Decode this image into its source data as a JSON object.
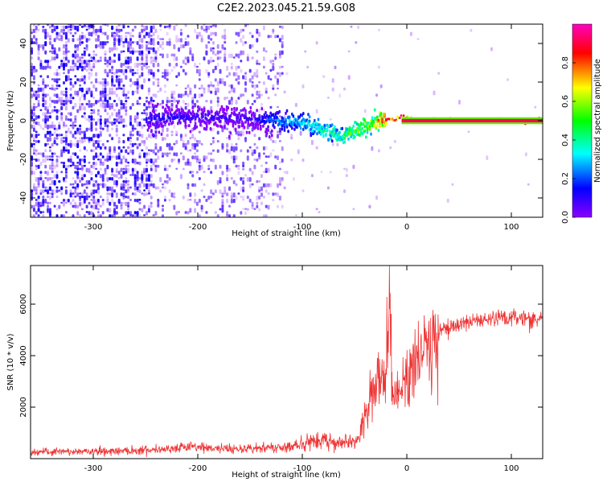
{
  "figure_title": "C2E2.2023.045.21.59.G08",
  "chart_data": [
    {
      "type": "heatmap",
      "title": "",
      "xlabel": "Height of straight line (km)",
      "ylabel": "Frequency (Hz)",
      "xlim": [
        -360,
        130
      ],
      "ylim": [
        -50,
        50
      ],
      "x_ticks": [
        -300,
        -200,
        -100,
        0,
        100
      ],
      "y_ticks": [
        -40,
        -20,
        0,
        20,
        40
      ],
      "colorbar": {
        "label": "Normalized spectral amplitude",
        "range": [
          0,
          1
        ],
        "ticks": [
          0.0,
          0.2,
          0.4,
          0.6,
          0.8
        ],
        "colormap": [
          "#8b00ff",
          "#0000ff",
          "#00ffff",
          "#00ff00",
          "#ffff00",
          "#ff0000",
          "#ff00c0"
        ]
      },
      "ridge": {
        "x": [
          -250,
          -200,
          -150,
          -120,
          -100,
          -80,
          -65,
          -55,
          -45,
          -35,
          -25,
          -10,
          0,
          20,
          60,
          100,
          130
        ],
        "frequency": [
          1,
          2,
          1,
          0,
          -1,
          -5,
          -8,
          -7,
          -4,
          -1,
          0,
          1,
          1,
          0,
          0,
          0,
          0
        ],
        "amplitude": [
          0.15,
          0.12,
          0.1,
          0.3,
          0.35,
          0.4,
          0.45,
          0.5,
          0.55,
          0.6,
          0.75,
          0.85,
          0.9,
          0.95,
          0.95,
          0.95,
          0.95
        ]
      }
    },
    {
      "type": "line",
      "title": "",
      "xlabel": "Height of straight line (km)",
      "ylabel": "SNR (10 * v/v)",
      "xlim": [
        -360,
        130
      ],
      "ylim": [
        0,
        7500
      ],
      "x_ticks": [
        -300,
        -200,
        -100,
        0,
        100
      ],
      "y_ticks": [
        2000,
        4000,
        6000
      ],
      "color": "#ee3333",
      "series": [
        {
          "x": [
            -360,
            -340,
            -320,
            -300,
            -280,
            -260,
            -240,
            -220,
            -200,
            -180,
            -160,
            -140,
            -120,
            -100,
            -90,
            -80,
            -70,
            -60,
            -50,
            -45,
            -40,
            -35,
            -30,
            -25,
            -20,
            -16,
            -14,
            -10,
            -5,
            0,
            5,
            10,
            15,
            20,
            25,
            30,
            35,
            40,
            50,
            60,
            70,
            80,
            90,
            100,
            110,
            120,
            130
          ],
          "y": [
            250,
            260,
            270,
            280,
            300,
            320,
            360,
            420,
            450,
            400,
            380,
            400,
            450,
            550,
            650,
            750,
            600,
            700,
            650,
            900,
            1500,
            2300,
            3000,
            3000,
            2800,
            7400,
            2500,
            2200,
            2800,
            3000,
            3500,
            3800,
            4200,
            4400,
            4700,
            4900,
            5000,
            5100,
            5200,
            5300,
            5300,
            5400,
            5500,
            5450,
            5500,
            5400,
            5450
          ]
        }
      ]
    }
  ]
}
